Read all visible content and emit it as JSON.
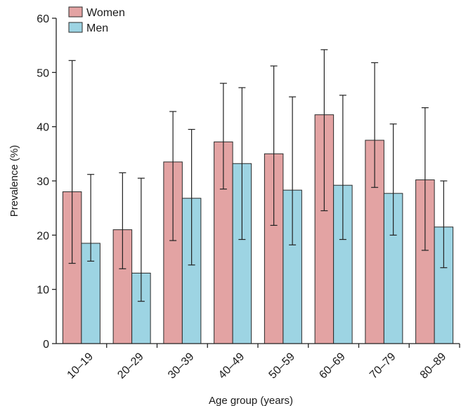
{
  "chart_data": {
    "type": "bar",
    "title": "",
    "xlabel": "Age group (years)",
    "ylabel": "Prevalence (%)",
    "ylim": [
      0,
      60
    ],
    "yticks": [
      "0",
      "10",
      "20",
      "30",
      "40",
      "50",
      "60"
    ],
    "categories": [
      "10–19",
      "20–29",
      "30–39",
      "40–49",
      "50–59",
      "60–69",
      "70–79",
      "80–89"
    ],
    "series": [
      {
        "name": "Women",
        "color": "#e3a3a3",
        "values": [
          28.0,
          21.0,
          33.5,
          37.2,
          35.0,
          42.2,
          37.5,
          30.2
        ],
        "error_low": [
          14.8,
          13.8,
          19.0,
          28.5,
          21.8,
          24.5,
          28.8,
          17.2
        ],
        "error_high": [
          52.2,
          31.5,
          42.8,
          48.0,
          51.2,
          54.2,
          51.8,
          43.5
        ]
      },
      {
        "name": "Men",
        "color": "#9dd4e3",
        "values": [
          18.5,
          13.0,
          26.8,
          33.2,
          28.3,
          29.2,
          27.7,
          21.5
        ],
        "error_low": [
          15.2,
          7.8,
          14.5,
          19.2,
          18.2,
          19.2,
          20.0,
          14.0
        ],
        "error_high": [
          31.2,
          30.5,
          39.5,
          47.2,
          45.5,
          45.8,
          40.5,
          30.0
        ]
      }
    ],
    "legend_position": "top-left",
    "grid": false
  }
}
